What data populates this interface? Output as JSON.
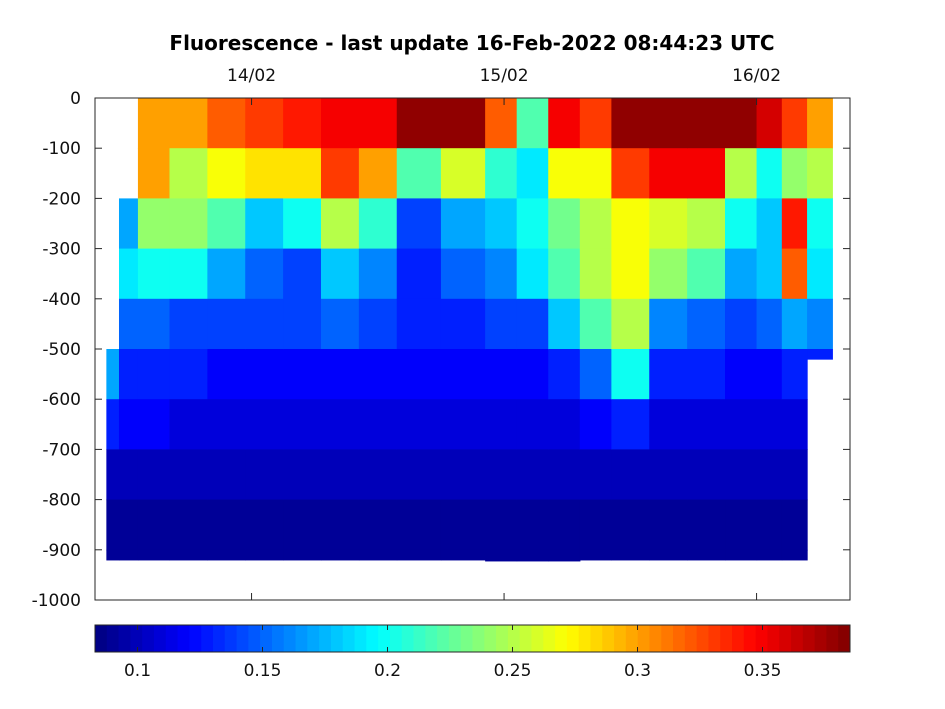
{
  "chart_data": {
    "type": "heatmap",
    "title": "Fluorescence - last update 16-Feb-2022 08:44:23 UTC",
    "xlabel": "",
    "ylabel": "",
    "x_tick_labels": [
      "14/02",
      "15/02",
      "16/02"
    ],
    "x_tick_days": [
      1,
      2,
      3
    ],
    "x_range_days": [
      0.38,
      3.37
    ],
    "x_axis_position": "top",
    "y_ticks": [
      0,
      -100,
      -200,
      -300,
      -400,
      -500,
      -600,
      -700,
      -800,
      -900,
      -1000
    ],
    "ylim": [
      -1000,
      0
    ],
    "colormap": "jet",
    "colorbar": {
      "orientation": "horizontal",
      "placement": "bottom",
      "range": [
        0.083,
        0.385
      ],
      "ticks": [
        0.1,
        0.15,
        0.2,
        0.25,
        0.3,
        0.35
      ],
      "tick_labels": [
        "0.1",
        "0.15",
        "0.2",
        "0.25",
        "0.3",
        "0.35"
      ]
    },
    "depth_levels": [
      0,
      -100,
      -200,
      -300,
      -400,
      -500,
      -600,
      -700,
      -800,
      -900
    ],
    "columns": [
      {
        "day": 0.45,
        "bottom": -920,
        "values": [
          null,
          null,
          null,
          null,
          null,
          0.17,
          0.13,
          0.1,
          0.09,
          0.09
        ]
      },
      {
        "day": 0.5,
        "bottom": -920,
        "values": [
          null,
          null,
          0.17,
          0.19,
          0.15,
          0.13,
          0.12,
          0.1,
          0.09,
          0.09
        ]
      },
      {
        "day": 0.6,
        "bottom": -920,
        "values": [
          0.3,
          0.3,
          0.24,
          0.2,
          0.15,
          0.13,
          0.12,
          0.1,
          0.09,
          0.09
        ]
      },
      {
        "day": 0.75,
        "bottom": -920,
        "values": [
          0.3,
          0.25,
          0.24,
          0.2,
          0.14,
          0.13,
          0.11,
          0.1,
          0.09,
          0.09
        ]
      },
      {
        "day": 0.9,
        "bottom": -920,
        "values": [
          0.32,
          0.27,
          0.22,
          0.17,
          0.14,
          0.12,
          0.11,
          0.1,
          0.09,
          0.09
        ]
      },
      {
        "day": 1.05,
        "bottom": -920,
        "values": [
          0.33,
          0.28,
          0.18,
          0.15,
          0.14,
          0.12,
          0.11,
          0.1,
          0.09,
          0.09
        ]
      },
      {
        "day": 1.2,
        "bottom": -920,
        "values": [
          0.34,
          0.28,
          0.2,
          0.14,
          0.14,
          0.12,
          0.11,
          0.1,
          0.09,
          0.09
        ]
      },
      {
        "day": 1.35,
        "bottom": -920,
        "values": [
          0.35,
          0.33,
          0.25,
          0.18,
          0.15,
          0.12,
          0.11,
          0.1,
          0.09,
          0.09
        ]
      },
      {
        "day": 1.5,
        "bottom": -920,
        "values": [
          0.35,
          0.3,
          0.21,
          0.16,
          0.14,
          0.12,
          0.11,
          0.1,
          0.09,
          0.09
        ]
      },
      {
        "day": 1.65,
        "bottom": -920,
        "values": [
          0.38,
          0.22,
          0.14,
          0.13,
          0.13,
          0.12,
          0.11,
          0.1,
          0.09,
          0.09
        ]
      },
      {
        "day": 1.85,
        "bottom": -920,
        "values": [
          0.38,
          0.26,
          0.17,
          0.15,
          0.13,
          0.12,
          0.11,
          0.1,
          0.09,
          0.09
        ]
      },
      {
        "day": 2.0,
        "bottom": -922,
        "values": [
          0.32,
          0.21,
          0.18,
          0.16,
          0.14,
          0.12,
          0.11,
          0.1,
          0.09,
          0.09
        ]
      },
      {
        "day": 2.1,
        "bottom": -922,
        "values": [
          0.22,
          0.19,
          0.2,
          0.19,
          0.14,
          0.12,
          0.11,
          0.1,
          0.09,
          0.09
        ]
      },
      {
        "day": 2.25,
        "bottom": -922,
        "values": [
          0.35,
          0.27,
          0.23,
          0.22,
          0.18,
          0.13,
          0.11,
          0.1,
          0.09,
          0.09
        ]
      },
      {
        "day": 2.35,
        "bottom": -920,
        "values": [
          0.33,
          0.27,
          0.25,
          0.25,
          0.22,
          0.15,
          0.12,
          0.1,
          0.09,
          0.09
        ]
      },
      {
        "day": 2.5,
        "bottom": -920,
        "values": [
          0.38,
          0.33,
          0.27,
          0.27,
          0.25,
          0.2,
          0.13,
          0.1,
          0.09,
          0.09
        ]
      },
      {
        "day": 2.65,
        "bottom": -920,
        "values": [
          0.38,
          0.35,
          0.26,
          0.24,
          0.16,
          0.13,
          0.11,
          0.1,
          0.09,
          0.09
        ]
      },
      {
        "day": 2.8,
        "bottom": -920,
        "values": [
          0.38,
          0.35,
          0.25,
          0.22,
          0.15,
          0.13,
          0.11,
          0.1,
          0.09,
          0.09
        ]
      },
      {
        "day": 2.95,
        "bottom": -920,
        "values": [
          0.38,
          0.25,
          0.2,
          0.17,
          0.14,
          0.12,
          0.11,
          0.1,
          0.09,
          0.09
        ]
      },
      {
        "day": 3.05,
        "bottom": -920,
        "values": [
          0.36,
          0.2,
          0.18,
          0.18,
          0.15,
          0.12,
          0.11,
          0.1,
          0.09,
          0.09
        ]
      },
      {
        "day": 3.15,
        "bottom": -920,
        "values": [
          0.33,
          0.24,
          0.34,
          0.32,
          0.17,
          0.13,
          0.11,
          0.1,
          0.09,
          0.09
        ]
      },
      {
        "day": 3.25,
        "bottom": -520,
        "values": [
          0.3,
          0.25,
          0.2,
          0.19,
          0.16,
          0.13,
          null,
          null,
          null,
          null
        ]
      }
    ]
  }
}
